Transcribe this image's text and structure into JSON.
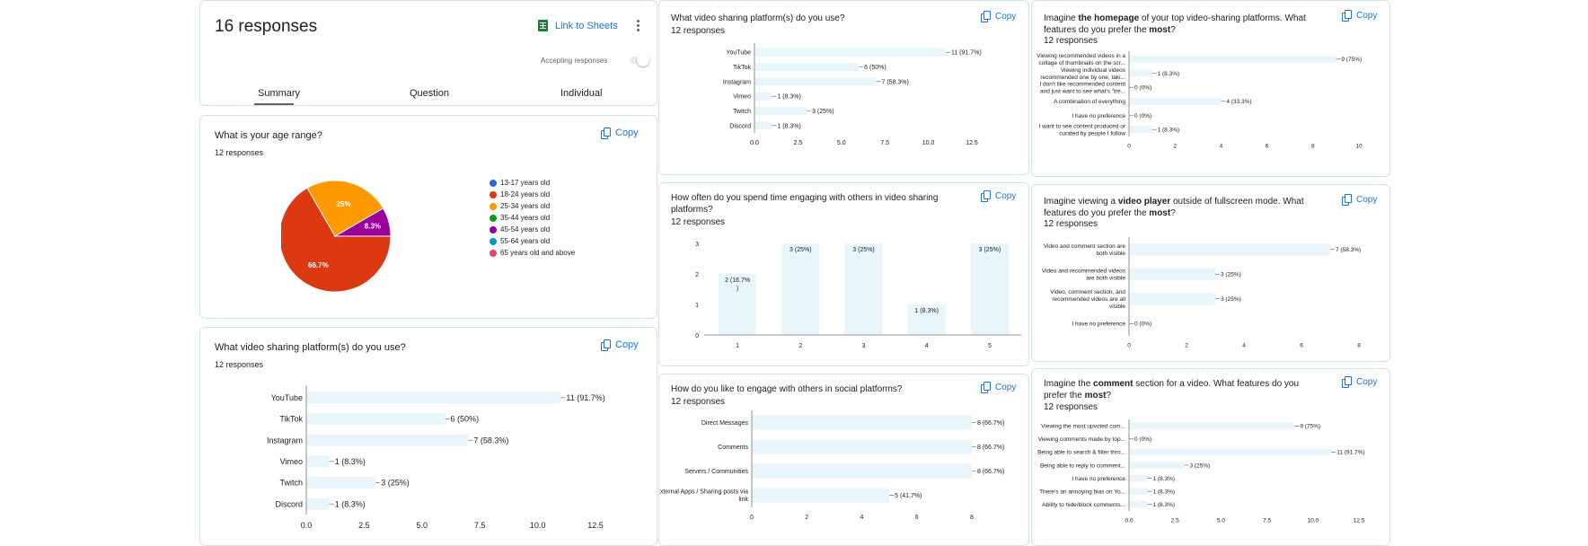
{
  "colors": {
    "bar": "#e8f5fb",
    "axis": "#777777",
    "accent": "#1a73e8",
    "pie": [
      "#3366cc",
      "#dc3912",
      "#ff9900",
      "#109618",
      "#990099",
      "#0099c6",
      "#dd4477"
    ]
  },
  "header": {
    "title": "16 responses",
    "link_to_sheets": "Link to Sheets",
    "accepting": "Accepting responses",
    "tabs": [
      "Summary",
      "Question",
      "Individual"
    ]
  },
  "copy_label": "Copy",
  "q_age": {
    "title": "What is your age range?",
    "responses": "12 responses"
  },
  "q_platforms": {
    "title": "What video sharing platform(s) do you use?",
    "responses": "12 responses"
  },
  "q_platforms_small": {
    "title": "What video sharing platform(s) do you use?",
    "responses": "12 responses"
  },
  "q_often": {
    "title": "How often do you spend time engaging with others in video sharing platforms?",
    "responses": "12 responses"
  },
  "q_engage": {
    "title": "How do you like to engage with others in social platforms?",
    "responses": "12 responses"
  },
  "q_homepage": {
    "title_pre": "Imagine ",
    "title_bold1": "the homepage",
    "title_mid": " of your top video-sharing platforms. What features do you prefer the ",
    "title_bold2": "most",
    "title_post": "?",
    "responses": "12 responses"
  },
  "q_player": {
    "title_pre": "Imagine viewing a ",
    "title_bold1": "video player",
    "title_mid": " outside of fullscreen mode. What features do you prefer the ",
    "title_bold2": "most",
    "title_post": "?",
    "responses": "12 responses"
  },
  "q_comment": {
    "title_pre": "Imagine the ",
    "title_bold1": "comment",
    "title_mid": " section for a video. What features do you prefer the ",
    "title_bold2": "most",
    "title_post": "?",
    "responses": "12 responses"
  },
  "chart_data": [
    {
      "id": "age",
      "type": "pie",
      "categories": [
        "13-17 years old",
        "18-24 years old",
        "25-34 years old",
        "35-44 years old",
        "45-54 years old",
        "55-64 years old",
        "65 years old and above"
      ],
      "values": [
        0,
        66.7,
        25,
        0,
        8.3,
        0,
        0
      ],
      "slice_labels": [
        "",
        "66.7%",
        "25%",
        "",
        "8.3%",
        "",
        ""
      ],
      "legend": "right"
    },
    {
      "id": "platforms",
      "type": "bar",
      "orientation": "horizontal",
      "categories": [
        "YouTube",
        "TikTok",
        "Instagram",
        "Vimeo",
        "Twitch",
        "Discord"
      ],
      "values": [
        11,
        6,
        7,
        1,
        3,
        1
      ],
      "labels": [
        "11 (91.7%)",
        "6 (50%)",
        "7 (58.3%)",
        "1 (8.3%)",
        "3 (25%)",
        "1 (8.3%)"
      ],
      "xlim": [
        0,
        12.5
      ],
      "ticks": [
        "0.0",
        "2.5",
        "5.0",
        "7.5",
        "10.0",
        "12.5"
      ]
    },
    {
      "id": "platforms_small",
      "type": "bar",
      "orientation": "horizontal",
      "categories": [
        "YouTube",
        "TikTok",
        "Instagram",
        "Vimeo",
        "Twitch",
        "Discord"
      ],
      "values": [
        11,
        6,
        7,
        1,
        3,
        1
      ],
      "labels": [
        "11 (91.7%)",
        "6 (50%)",
        "7 (58.3%)",
        "1 (8.3%)",
        "3 (25%)",
        "1 (8.3%)"
      ],
      "xlim": [
        0,
        12.5
      ],
      "ticks": [
        "0.0",
        "2.5",
        "5.0",
        "7.5",
        "10.0",
        "12.5"
      ]
    },
    {
      "id": "often",
      "type": "bar",
      "orientation": "vertical",
      "categories": [
        "1",
        "2",
        "3",
        "4",
        "5"
      ],
      "values": [
        2,
        3,
        3,
        1,
        3
      ],
      "labels": [
        [
          "2 (16.7%",
          ")"
        ],
        [
          "3 (25%)"
        ],
        [
          "3 (25%)"
        ],
        [
          "1 (8.3%)"
        ],
        [
          "3 (25%)"
        ]
      ],
      "ylim": [
        0,
        3
      ],
      "ticks": [
        "0",
        "1",
        "2",
        "3"
      ]
    },
    {
      "id": "engage",
      "type": "bar",
      "orientation": "horizontal",
      "categories": [
        [
          "Direct Messages"
        ],
        [
          "Comments"
        ],
        [
          "Servers / Communities"
        ],
        [
          "External Apps / Sharing posts via",
          "link"
        ]
      ],
      "values": [
        8,
        8,
        8,
        5
      ],
      "labels": [
        "8 (66.7%)",
        "8 (66.7%)",
        "8 (66.7%)",
        "5 (41.7%)"
      ],
      "xlim": [
        0,
        8
      ],
      "ticks": [
        "0",
        "2",
        "4",
        "6",
        "8"
      ]
    },
    {
      "id": "homepage",
      "type": "bar",
      "orientation": "horizontal",
      "categories": [
        [
          "Viewing recommended videos in a",
          "collage of thumbnails on the scr..."
        ],
        [
          "Viewing individual videos",
          "recommended one by one, taki..."
        ],
        [
          "I don't like recommended content",
          "and just want to see what's \"tre..."
        ],
        [
          "A combination of everything"
        ],
        [
          "I have no preference"
        ],
        [
          "I want to see content produced or",
          "curated by people I follow"
        ]
      ],
      "values": [
        9,
        1,
        0,
        4,
        0,
        1
      ],
      "labels": [
        "9 (75%)",
        "1 (8.3%)",
        "0 (0%)",
        "4 (33.3%)",
        "0 (0%)",
        "1 (8.3%)"
      ],
      "xlim": [
        0,
        10
      ],
      "ticks": [
        "0",
        "2",
        "4",
        "6",
        "8",
        "10"
      ]
    },
    {
      "id": "player",
      "type": "bar",
      "orientation": "horizontal",
      "categories": [
        [
          "Video and comment section are",
          "both visible"
        ],
        [
          "Video and recommended videos",
          "are both visible"
        ],
        [
          "Video, comment section, and",
          "recommended videos are all",
          "visible"
        ],
        [
          "I have no preference"
        ]
      ],
      "values": [
        7,
        3,
        3,
        0
      ],
      "labels": [
        "7 (58.3%)",
        "3 (25%)",
        "3 (25%)",
        "0 (0%)"
      ],
      "xlim": [
        0,
        8
      ],
      "ticks": [
        "0",
        "2",
        "4",
        "6",
        "8"
      ]
    },
    {
      "id": "comment",
      "type": "bar",
      "orientation": "horizontal",
      "categories": [
        [
          "Viewing the most upvoted com..."
        ],
        [
          "Viewing comments made by top..."
        ],
        [
          "Being able to search & filter thro..."
        ],
        [
          "Being able to reply to comment..."
        ],
        [
          "I have no preference"
        ],
        [
          "There's an annoying bias on Yo..."
        ],
        [
          "Ability to hide/block comments..."
        ]
      ],
      "values": [
        9,
        0,
        11,
        3,
        1,
        1,
        1
      ],
      "labels": [
        "9 (75%)",
        "0 (0%)",
        "11 (91.7%)",
        "3 (25%)",
        "1 (8.3%)",
        "1 (8.3%)",
        "1 (8.3%)"
      ],
      "xlim": [
        0,
        12.5
      ],
      "ticks": [
        "0.0",
        "2.5",
        "5.0",
        "7.5",
        "10.0",
        "12.5"
      ]
    }
  ]
}
